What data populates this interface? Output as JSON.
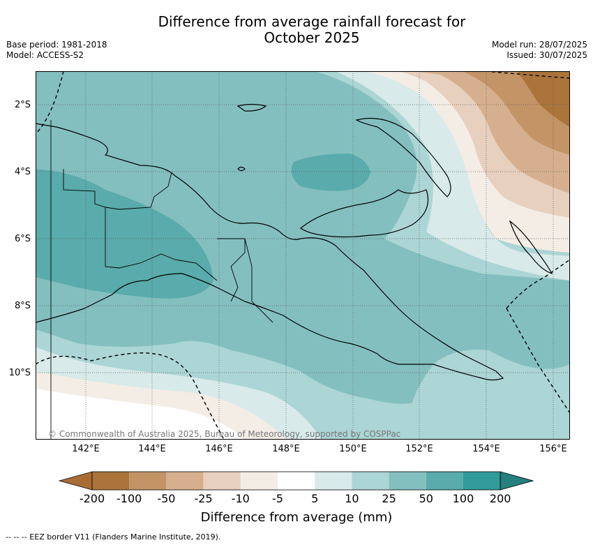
{
  "title_line1": "Difference from average rainfall forecast for",
  "title_line2": "October 2025",
  "meta_left": {
    "base_period": "Base period: 1981-2018",
    "model": "Model: ACCESS-S2"
  },
  "meta_right": {
    "model_run": "Model run: 28/07/2025",
    "issued": "Issued: 30/07/2025"
  },
  "x_ticks": [
    "142°E",
    "144°E",
    "146°E",
    "148°E",
    "150°E",
    "152°E",
    "154°E",
    "156°E"
  ],
  "y_ticks": [
    "2°S",
    "4°S",
    "6°S",
    "8°S",
    "10°S"
  ],
  "copyright": "© Commonwealth of Australia 2025, Bureau of Meteorology, supported by COSPPac",
  "colorbar": {
    "labels": [
      "-200",
      "-100",
      "-50",
      "-25",
      "-10",
      "-5",
      "5",
      "10",
      "25",
      "50",
      "100",
      "200"
    ],
    "colors": [
      "#a86d34",
      "#ab743b",
      "#c39466",
      "#d6b08e",
      "#e7d0be",
      "#f3ede6",
      "#ffffff",
      "#d8eae9",
      "#acd5d5",
      "#84bfc0",
      "#5aabab",
      "#319b99",
      "#25807e"
    ],
    "title": "Difference from average (mm)"
  },
  "footnote": "--  --  -- EEZ border V11 (Flanders Marine Institute, 2019)."
}
